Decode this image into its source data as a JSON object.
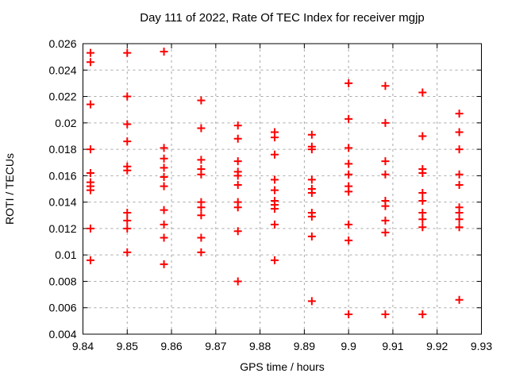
{
  "chart_data": {
    "type": "scatter",
    "title": "Day 111 of 2022, Rate Of TEC Index for receiver mgjp",
    "xlabel": "GPS time / hours",
    "ylabel": "ROTI / TECUs",
    "xlim": [
      9.84,
      9.93
    ],
    "ylim": [
      0.004,
      0.026
    ],
    "xticks": [
      9.84,
      9.85,
      9.86,
      9.87,
      9.88,
      9.89,
      9.9,
      9.91,
      9.92,
      9.93
    ],
    "xtick_labels": [
      "9.84",
      "9.85",
      "9.86",
      "9.87",
      "9.88",
      "9.89",
      "9.9",
      "9.91",
      "9.92",
      "9.93"
    ],
    "yticks": [
      0.004,
      0.006,
      0.008,
      0.01,
      0.012,
      0.014,
      0.016,
      0.018,
      0.02,
      0.022,
      0.024,
      0.026
    ],
    "ytick_labels": [
      "0.004",
      "0.006",
      "0.008",
      "0.01",
      "0.012",
      "0.014",
      "0.016",
      "0.018",
      "0.02",
      "0.022",
      "0.024",
      "0.026"
    ],
    "grid": true,
    "legend": "none",
    "marker": {
      "shape": "plus",
      "color": "#ff0000",
      "size": 11,
      "stroke_width": 2
    },
    "grid_color": "#a8a8a8",
    "frame_color": "#000000",
    "background": "#ffffff",
    "columns": [
      {
        "x": 9.8417,
        "y": [
          0.0253,
          0.0246,
          0.0214,
          0.018,
          0.0162,
          0.0155,
          0.0152,
          0.0149,
          0.012,
          0.0096
        ]
      },
      {
        "x": 9.85,
        "y": [
          0.0253,
          0.022,
          0.0199,
          0.0186,
          0.0167,
          0.0164,
          0.0132,
          0.0126,
          0.012,
          0.0102
        ]
      },
      {
        "x": 9.8583,
        "y": [
          0.0254,
          0.0181,
          0.0173,
          0.0166,
          0.0159,
          0.0152,
          0.0134,
          0.0123,
          0.0113,
          0.0093
        ]
      },
      {
        "x": 9.8667,
        "y": [
          0.0217,
          0.0196,
          0.0172,
          0.0165,
          0.0161,
          0.014,
          0.0136,
          0.013,
          0.0113,
          0.0102
        ]
      },
      {
        "x": 9.875,
        "y": [
          0.0198,
          0.0188,
          0.0171,
          0.0163,
          0.016,
          0.0153,
          0.014,
          0.0136,
          0.0118,
          0.008
        ]
      },
      {
        "x": 9.8833,
        "y": [
          0.0193,
          0.0189,
          0.0176,
          0.0157,
          0.0149,
          0.0141,
          0.0138,
          0.0135,
          0.0123,
          0.0096
        ]
      },
      {
        "x": 9.8917,
        "y": [
          0.0191,
          0.0182,
          0.018,
          0.0157,
          0.015,
          0.0147,
          0.0132,
          0.0129,
          0.0114,
          0.0065
        ]
      },
      {
        "x": 9.9,
        "y": [
          0.023,
          0.0203,
          0.0181,
          0.0169,
          0.0161,
          0.0152,
          0.0148,
          0.0123,
          0.0111,
          0.0055
        ]
      },
      {
        "x": 9.9083,
        "y": [
          0.0228,
          0.02,
          0.0171,
          0.0161,
          0.0141,
          0.0137,
          0.0126,
          0.0117,
          0.0055
        ]
      },
      {
        "x": 9.9167,
        "y": [
          0.0223,
          0.019,
          0.0165,
          0.0162,
          0.0147,
          0.0141,
          0.0132,
          0.0127,
          0.0121,
          0.0055
        ]
      },
      {
        "x": 9.925,
        "y": [
          0.0207,
          0.0193,
          0.018,
          0.0161,
          0.0153,
          0.0136,
          0.0132,
          0.0127,
          0.0121,
          0.0066
        ]
      }
    ]
  }
}
